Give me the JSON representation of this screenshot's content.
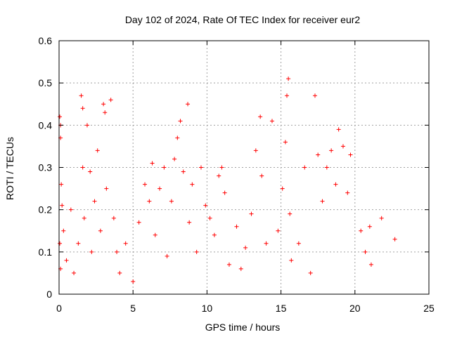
{
  "chart_data": {
    "type": "scatter",
    "title": "Day 102 of 2024, Rate Of TEC Index for receiver eur2",
    "xlabel": "GPS time / hours",
    "ylabel": "ROTI / TECUs",
    "xlim": [
      0,
      25
    ],
    "ylim": [
      0,
      0.6
    ],
    "grid": true,
    "marker": "+",
    "color": "#ff0000",
    "x_ticks": [
      0,
      5,
      10,
      15,
      20,
      25
    ],
    "x_tick_labels": [
      "0",
      "5",
      "10",
      "15",
      "20",
      "25"
    ],
    "y_ticks": [
      0,
      0.1,
      0.2,
      0.3,
      0.4,
      0.5,
      0.6
    ],
    "y_tick_labels": [
      "0",
      "0.1",
      "0.2",
      "0.3",
      "0.4",
      "0.5",
      "0.6"
    ],
    "series": [
      {
        "name": "ROTI",
        "x": [
          0.05,
          0.1,
          0.1,
          0.15,
          0.2,
          0.05,
          0.1,
          0.3,
          0.5,
          0.8,
          1.0,
          1.3,
          1.5,
          1.6,
          1.6,
          1.7,
          1.9,
          2.1,
          2.2,
          2.4,
          2.6,
          2.8,
          3.0,
          3.1,
          3.2,
          3.5,
          3.7,
          3.9,
          4.1,
          4.5,
          5.0,
          5.4,
          5.8,
          6.1,
          6.3,
          6.5,
          6.8,
          7.1,
          7.3,
          7.6,
          7.8,
          8.0,
          8.2,
          8.4,
          8.7,
          8.8,
          9.0,
          9.3,
          9.6,
          9.9,
          10.2,
          10.5,
          10.8,
          11.0,
          11.2,
          11.5,
          12.0,
          12.3,
          12.6,
          13.0,
          13.3,
          13.6,
          13.7,
          14.0,
          14.4,
          14.8,
          15.1,
          15.3,
          15.4,
          15.5,
          15.6,
          15.7,
          16.2,
          16.6,
          17.0,
          17.3,
          17.5,
          17.8,
          18.1,
          18.4,
          18.7,
          18.9,
          19.2,
          19.5,
          19.7,
          20.4,
          20.7,
          21.0,
          21.1,
          21.8,
          22.7
        ],
        "y": [
          0.42,
          0.4,
          0.37,
          0.26,
          0.21,
          0.12,
          0.06,
          0.15,
          0.08,
          0.2,
          0.05,
          0.12,
          0.47,
          0.44,
          0.3,
          0.18,
          0.4,
          0.29,
          0.1,
          0.22,
          0.34,
          0.15,
          0.45,
          0.43,
          0.25,
          0.46,
          0.18,
          0.1,
          0.05,
          0.12,
          0.03,
          0.17,
          0.26,
          0.22,
          0.31,
          0.14,
          0.25,
          0.3,
          0.09,
          0.22,
          0.32,
          0.37,
          0.41,
          0.29,
          0.45,
          0.17,
          0.26,
          0.1,
          0.3,
          0.21,
          0.18,
          0.14,
          0.28,
          0.3,
          0.24,
          0.07,
          0.16,
          0.06,
          0.11,
          0.19,
          0.34,
          0.42,
          0.28,
          0.12,
          0.41,
          0.15,
          0.25,
          0.36,
          0.47,
          0.51,
          0.19,
          0.08,
          0.12,
          0.3,
          0.05,
          0.47,
          0.33,
          0.22,
          0.3,
          0.34,
          0.26,
          0.39,
          0.35,
          0.24,
          0.33,
          0.15,
          0.1,
          0.16,
          0.07,
          0.18,
          0.13
        ]
      }
    ]
  }
}
